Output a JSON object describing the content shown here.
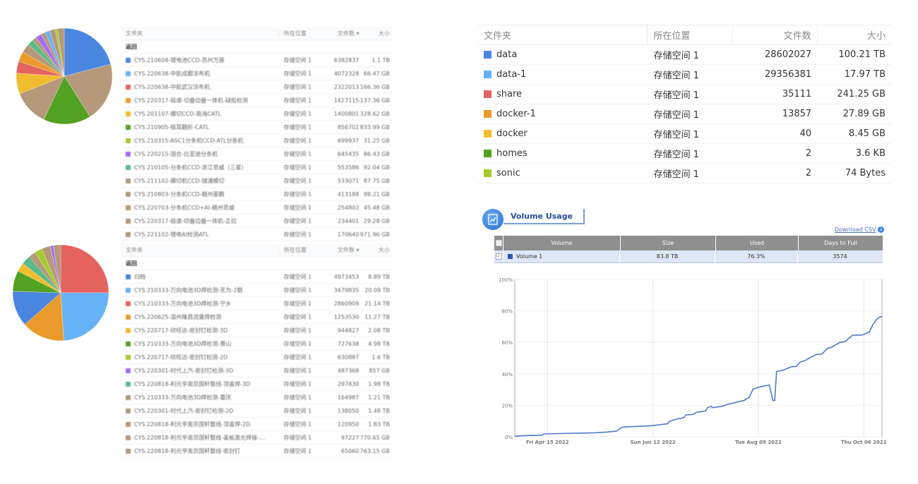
{
  "colors": {
    "blue": "#4a86e0",
    "lightblue": "#66b2f7",
    "red": "#e4635f",
    "orange": "#ea9a2a",
    "yellow": "#f0bd2e",
    "green": "#52a221",
    "lime": "#a5cb2b",
    "purple": "#a66cf5",
    "teal": "#58bb8a",
    "tan": "#b5997a",
    "line": "#4f7bc9"
  },
  "pie1": {
    "slices": [
      {
        "color": "blue",
        "pct": 21
      },
      {
        "color": "tan",
        "pct": 20
      },
      {
        "color": "green",
        "pct": 16
      },
      {
        "color": "tan",
        "pct": 12
      },
      {
        "color": "yellow",
        "pct": 7
      },
      {
        "color": "red",
        "pct": 4
      },
      {
        "color": "orange",
        "pct": 3.5
      },
      {
        "color": "tan",
        "pct": 3
      },
      {
        "color": "teal",
        "pct": 2
      },
      {
        "color": "tan",
        "pct": 1.5
      },
      {
        "color": "purple",
        "pct": 2
      },
      {
        "color": "tan",
        "pct": 1.5
      },
      {
        "color": "lightblue",
        "pct": 1.5
      },
      {
        "color": "tan",
        "pct": 2
      },
      {
        "color": "lime",
        "pct": 0.8
      },
      {
        "color": "tan",
        "pct": 2.2
      }
    ]
  },
  "pie2": {
    "slices": [
      {
        "color": "red",
        "pct": 25
      },
      {
        "color": "lightblue",
        "pct": 24
      },
      {
        "color": "orange",
        "pct": 14.5
      },
      {
        "color": "blue",
        "pct": 12
      },
      {
        "color": "green",
        "pct": 7
      },
      {
        "color": "yellow",
        "pct": 3
      },
      {
        "color": "teal",
        "pct": 3
      },
      {
        "color": "tan",
        "pct": 2.5
      },
      {
        "color": "lime",
        "pct": 2.5
      },
      {
        "color": "tan",
        "pct": 3
      },
      {
        "color": "purple",
        "pct": 1
      },
      {
        "color": "tan",
        "pct": 2.5
      }
    ]
  },
  "table1": {
    "headers": [
      "文件夹",
      "所在位置",
      "文件数 ▾",
      "大小"
    ],
    "back": "返回",
    "rows": [
      {
        "color": "blue",
        "name": "CYS.210608-锂电池CCD-苏州万源",
        "loc": "存储空间 1",
        "count": "6382837",
        "size": "1.1 TB"
      },
      {
        "color": "lightblue",
        "name": "CYS.220638-中航成都涂布机",
        "loc": "存储空间 1",
        "count": "4072328",
        "size": "66.47 GB"
      },
      {
        "color": "red",
        "name": "CYS.220638-中航武汉涂布机",
        "loc": "存储空间 1",
        "count": "2322013",
        "size": "166.36 GB"
      },
      {
        "color": "orange",
        "name": "CYS.220317-极速-切叠边叠一体机-缺陷检测",
        "loc": "存储空间 1",
        "count": "1427115",
        "size": "137.36 GB"
      },
      {
        "color": "yellow",
        "name": "CYS.201107-模切CCD-南海CATL",
        "loc": "存储空间 1",
        "count": "1400801",
        "size": "328.62 GB"
      },
      {
        "color": "green",
        "name": "CYS.210905-极耳翻折-CATL",
        "loc": "存储空间 1",
        "count": "856702",
        "size": "833.99 GB"
      },
      {
        "color": "lime",
        "name": "CYS.210315-ASC1分条机CCD-ATL分条机",
        "loc": "存储空间 1",
        "count": "699937",
        "size": "31.25 GB"
      },
      {
        "color": "purple",
        "name": "CYS.220215-国合-比亚迪分条机",
        "loc": "存储空间 1",
        "count": "645435",
        "size": "86.43 GB"
      },
      {
        "color": "teal",
        "name": "CYS.210105-分条机CCD-浙江思威（三星）",
        "loc": "存储空间 1",
        "count": "553586",
        "size": "92.04 GB"
      },
      {
        "color": "tan",
        "name": "CYS.211102-模切机CCD-瑞浦模切",
        "loc": "存储空间 1",
        "count": "533071",
        "size": "87.75 GB"
      },
      {
        "color": "tan",
        "name": "CYS.210803-分条机CCD-赣州豪鹏",
        "loc": "存储空间 1",
        "count": "413188",
        "size": "98.21 GB"
      },
      {
        "color": "tan",
        "name": "CYS.220703-分条机CCD+AI-赣州思威",
        "loc": "存储空间 1",
        "count": "254802",
        "size": "45.48 GB"
      },
      {
        "color": "tan",
        "name": "CYS.220317-极速-切叠边叠一体机-正拉",
        "loc": "存储空间 1",
        "count": "234401",
        "size": "29.28 GB"
      },
      {
        "color": "tan",
        "name": "CYS.221102-锂电AI检测ATL",
        "loc": "存储空间 1",
        "count": "170640",
        "size": "971.96 GB"
      }
    ]
  },
  "table2": {
    "headers": [
      "文件夹",
      "所在位置",
      "文件数 ▾",
      "大小"
    ],
    "back": "返回",
    "rows": [
      {
        "color": "blue",
        "name": "归档",
        "loc": "存储空间 1",
        "count": "4973453",
        "size": "8.89 TB"
      },
      {
        "color": "lightblue",
        "name": "CYS.210333-万向电池3D焊检测-无为-2期",
        "loc": "存储空间 1",
        "count": "3479835",
        "size": "20.09 TB"
      },
      {
        "color": "red",
        "name": "CYS.210333-万向电池3D焊检测-宁乡",
        "loc": "存储空间 1",
        "count": "2860909",
        "size": "21.14 TB"
      },
      {
        "color": "orange",
        "name": "CYS.220625-温州隆昌流量焊检测",
        "loc": "存储空间 1",
        "count": "1253530",
        "size": "11.27 TB"
      },
      {
        "color": "yellow",
        "name": "CYS.220717-欣旺达-密封钉检测-3D",
        "loc": "存储空间 1",
        "count": "944827",
        "size": "2.08 TB"
      },
      {
        "color": "green",
        "name": "CYS.210333-万向电池3D焊检测-萧山",
        "loc": "存储空间 1",
        "count": "727638",
        "size": "4.98 TB"
      },
      {
        "color": "lime",
        "name": "CYS.220717-欣旺达-密封钉检测-2D",
        "loc": "存储空间 1",
        "count": "630887",
        "size": "1.6 TB"
      },
      {
        "color": "purple",
        "name": "CYS.220301-时代上汽-密封钉检测-3D",
        "loc": "存储空间 1",
        "count": "487368",
        "size": "857 GB"
      },
      {
        "color": "teal",
        "name": "CYS.220818-利元亨南京国轩整线-顶盖焊-3D",
        "loc": "存储空间 1",
        "count": "297830",
        "size": "1.98 TB"
      },
      {
        "color": "tan",
        "name": "CYS.210333-万向电池3D焊检测-重庆",
        "loc": "存储空间 1",
        "count": "164987",
        "size": "1.21 TB"
      },
      {
        "color": "tan",
        "name": "CYS.220301-时代上汽-密封钉检测-2D",
        "loc": "存储空间 1",
        "count": "138050",
        "size": "1.48 TB"
      },
      {
        "color": "tan",
        "name": "CYS.220818-利元亨南京国轩整线-顶盖焊-2D",
        "loc": "存储空间 1",
        "count": "120950",
        "size": "1.83 TB"
      },
      {
        "color": "tan",
        "name": "CYS.220818-利元亨南京国轩整线-盖板激光焊接-…",
        "loc": "存储空间 1",
        "count": "97227",
        "size": "770.65 GB"
      },
      {
        "color": "tan",
        "name": "CYS.220818-利元亨南京国轩整线-密封钉",
        "loc": "存储空间 1",
        "count": "65060",
        "size": "763.15 GB"
      }
    ]
  },
  "folders": {
    "headers": [
      "文件夹",
      "所在位置",
      "文件数",
      "大小"
    ],
    "rows": [
      {
        "color": "blue",
        "name": "data",
        "loc": "存储空间 1",
        "count": "28602027",
        "size": "100.21 TB"
      },
      {
        "color": "lightblue",
        "name": "data-1",
        "loc": "存储空间 1",
        "count": "29356381",
        "size": "17.97 TB"
      },
      {
        "color": "red",
        "name": "share",
        "loc": "存储空间 1",
        "count": "35111",
        "size": "241.25 GB"
      },
      {
        "color": "orange",
        "name": "docker-1",
        "loc": "存储空间 1",
        "count": "13857",
        "size": "27.89 GB"
      },
      {
        "color": "yellow",
        "name": "docker",
        "loc": "存储空间 1",
        "count": "40",
        "size": "8.45 GB"
      },
      {
        "color": "green",
        "name": "homes",
        "loc": "存储空间 1",
        "count": "2",
        "size": "3.6 KB"
      },
      {
        "color": "lime",
        "name": "sonic",
        "loc": "存储空间 1",
        "count": "2",
        "size": "74 Bytes"
      }
    ]
  },
  "volume": {
    "title": "Volume Usage",
    "download": "Download CSV",
    "headers": [
      "Volume",
      "Size",
      "Used",
      "Days to Full"
    ],
    "row": {
      "name": "Volume 1",
      "size": "83.8 TB",
      "used": "76.3%",
      "days": "3574",
      "checked": true
    }
  },
  "chart_data": {
    "type": "line",
    "ylim": [
      0,
      100
    ],
    "xlim": [
      "2022-03-28",
      "2022-10-16"
    ],
    "yticks": [
      "0%",
      "20%",
      "40%",
      "60%",
      "80%",
      "100%"
    ],
    "xticks": [
      {
        "date": "2022-04-15",
        "label": "Fri Apr 15 2022"
      },
      {
        "date": "2022-06-12",
        "label": "Sun Jun 12 2022"
      },
      {
        "date": "2022-08-09",
        "label": "Tue Aug 09 2022"
      },
      {
        "date": "2022-10-06",
        "label": "Thu Oct 06 2022"
      }
    ],
    "grid": true,
    "series": [
      {
        "color": "#4f7bc9",
        "points": [
          [
            "2022-03-28",
            0.3
          ],
          [
            "2022-04-02",
            0.7
          ],
          [
            "2022-04-12",
            1.0
          ],
          [
            "2022-04-13",
            1.8
          ],
          [
            "2022-05-11",
            2.5
          ],
          [
            "2022-05-18",
            3.0
          ],
          [
            "2022-05-23",
            3.6
          ],
          [
            "2022-05-26",
            6.0
          ],
          [
            "2022-05-29",
            6.3
          ],
          [
            "2022-06-11",
            7.0
          ],
          [
            "2022-06-17",
            7.8
          ],
          [
            "2022-06-20",
            8.2
          ],
          [
            "2022-06-21",
            9.7
          ],
          [
            "2022-06-24",
            10.8
          ],
          [
            "2022-06-26",
            11.5
          ],
          [
            "2022-06-29",
            12.0
          ],
          [
            "2022-06-30",
            13.8
          ],
          [
            "2022-07-04",
            14.2
          ],
          [
            "2022-07-06",
            15.5
          ],
          [
            "2022-07-11",
            16.4
          ],
          [
            "2022-07-12",
            18.5
          ],
          [
            "2022-07-14",
            19.3
          ],
          [
            "2022-07-15",
            18.5
          ],
          [
            "2022-07-20",
            19.3
          ],
          [
            "2022-07-22",
            20.3
          ],
          [
            "2022-08-01",
            23.0
          ],
          [
            "2022-08-04",
            25.0
          ],
          [
            "2022-08-06",
            30.2
          ],
          [
            "2022-08-10",
            31.7
          ],
          [
            "2022-08-15",
            32.9
          ],
          [
            "2022-08-17",
            23.0
          ],
          [
            "2022-08-18",
            23.0
          ],
          [
            "2022-08-19",
            41.4
          ],
          [
            "2022-08-23",
            42.5
          ],
          [
            "2022-08-27",
            44.4
          ],
          [
            "2022-08-30",
            44.8
          ],
          [
            "2022-09-01",
            47.4
          ],
          [
            "2022-09-04",
            48.6
          ],
          [
            "2022-09-06",
            50.0
          ],
          [
            "2022-09-10",
            52.3
          ],
          [
            "2022-09-13",
            52.6
          ],
          [
            "2022-09-16",
            56.2
          ],
          [
            "2022-09-18",
            56.8
          ],
          [
            "2022-09-23",
            60.0
          ],
          [
            "2022-09-26",
            60.5
          ],
          [
            "2022-09-27",
            61.9
          ],
          [
            "2022-09-30",
            64.6
          ],
          [
            "2022-10-05",
            64.6
          ],
          [
            "2022-10-07",
            65.6
          ],
          [
            "2022-10-09",
            66.4
          ],
          [
            "2022-10-11",
            71.3
          ],
          [
            "2022-10-13",
            74.6
          ],
          [
            "2022-10-15",
            76.2
          ],
          [
            "2022-10-16",
            76.3
          ]
        ]
      }
    ]
  }
}
